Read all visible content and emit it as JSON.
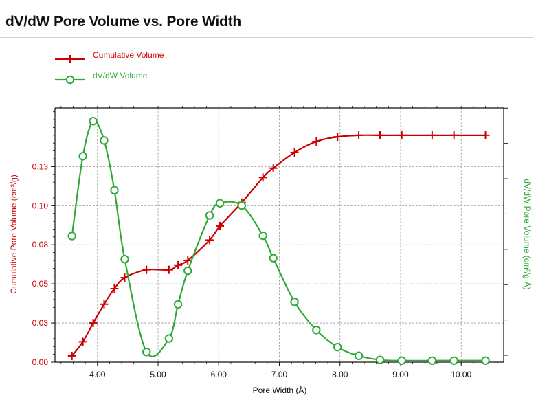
{
  "title": "dV/dW Pore Volume vs. Pore Width",
  "colors": {
    "cumulative": "#cc0000",
    "dvdw": "#2ea836",
    "axis": "#111111",
    "grid": "#9a9a9a"
  },
  "chart_data": {
    "type": "line",
    "title": "dV/dW Pore Volume vs. Pore Width",
    "xlabel": "Pore Width (Å)",
    "ylabel_left": "Cumulative Pore Volume (cm³/g)",
    "ylabel_right": "dV/dW Pore Volume (cm³/g·Å)",
    "xlim": [
      3.3,
      10.7
    ],
    "ylim_left": [
      0.0,
      0.1625
    ],
    "ylim_right": [
      0.0,
      1.0
    ],
    "x_ticks": [
      4.0,
      5.0,
      6.0,
      7.0,
      8.0,
      9.0,
      10.0
    ],
    "x_tick_labels": [
      "4.00",
      "5.00",
      "6.00",
      "7.00",
      "8.00",
      "9.00",
      "10.00"
    ],
    "y_left_ticks": [
      0.0,
      0.025,
      0.05,
      0.075,
      0.1,
      0.125
    ],
    "y_left_tick_labels": [
      "0.00",
      "0.03",
      "0.05",
      "0.08",
      "0.10",
      "0.13"
    ],
    "grid": true,
    "legend_position": "top-left",
    "series": [
      {
        "name": "Cumulative Volume",
        "axis": "left",
        "marker": "plus",
        "x": [
          3.58,
          3.76,
          3.93,
          4.11,
          4.28,
          4.45,
          4.81,
          5.18,
          5.33,
          5.49,
          5.85,
          6.02,
          6.38,
          6.73,
          6.9,
          7.25,
          7.61,
          7.96,
          8.31,
          8.66,
          9.02,
          9.52,
          9.88,
          10.4
        ],
        "y": [
          0.004,
          0.013,
          0.025,
          0.037,
          0.047,
          0.054,
          0.059,
          0.059,
          0.062,
          0.065,
          0.078,
          0.087,
          0.102,
          0.118,
          0.124,
          0.134,
          0.141,
          0.144,
          0.145,
          0.145,
          0.145,
          0.145,
          0.145,
          0.145
        ]
      },
      {
        "name": "dV/dW Volume",
        "axis": "right",
        "marker": "circle",
        "x": [
          3.58,
          3.76,
          3.93,
          4.11,
          4.28,
          4.45,
          4.81,
          5.18,
          5.33,
          5.49,
          5.85,
          6.02,
          6.38,
          6.73,
          6.9,
          7.25,
          7.61,
          7.96,
          8.31,
          8.66,
          9.02,
          9.52,
          9.88,
          10.4
        ],
        "y": [
          0.496,
          0.81,
          0.948,
          0.872,
          0.676,
          0.405,
          0.04,
          0.093,
          0.227,
          0.359,
          0.577,
          0.625,
          0.616,
          0.497,
          0.409,
          0.237,
          0.126,
          0.059,
          0.025,
          0.009,
          0.006,
          0.006,
          0.006,
          0.006
        ]
      }
    ]
  }
}
